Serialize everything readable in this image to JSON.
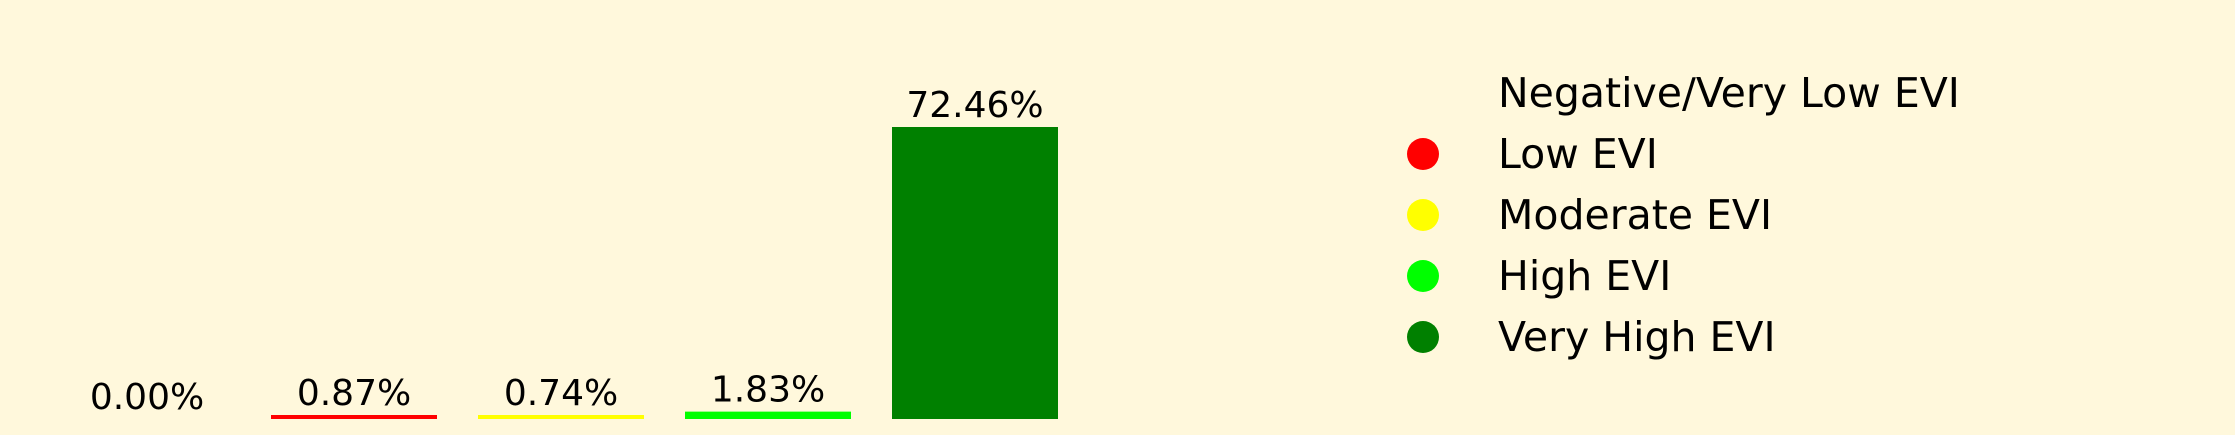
{
  "chart_data": {
    "type": "bar",
    "categories": [
      "Negative/Very Low EVI",
      "Low EVI",
      "Moderate EVI",
      "High EVI",
      "Very High EVI"
    ],
    "values": [
      0.0,
      0.87,
      0.74,
      1.83,
      72.46
    ],
    "value_labels": [
      "0.00%",
      "0.87%",
      "0.74%",
      "1.83%",
      "72.46%"
    ],
    "colors": [
      "#fff8dc",
      "#ff0000",
      "#ffff00",
      "#00ff00",
      "#008000"
    ],
    "ylim": [
      0,
      80
    ],
    "grid": false,
    "axes_visible": false,
    "legend": {
      "placement": "right",
      "entries": [
        {
          "label": "Negative/Very Low EVI",
          "color": "#fff8dc"
        },
        {
          "label": "Low EVI",
          "color": "#ff0000"
        },
        {
          "label": "Moderate EVI",
          "color": "#ffff00"
        },
        {
          "label": "High EVI",
          "color": "#00ff00"
        },
        {
          "label": "Very High EVI",
          "color": "#008000"
        }
      ]
    }
  }
}
